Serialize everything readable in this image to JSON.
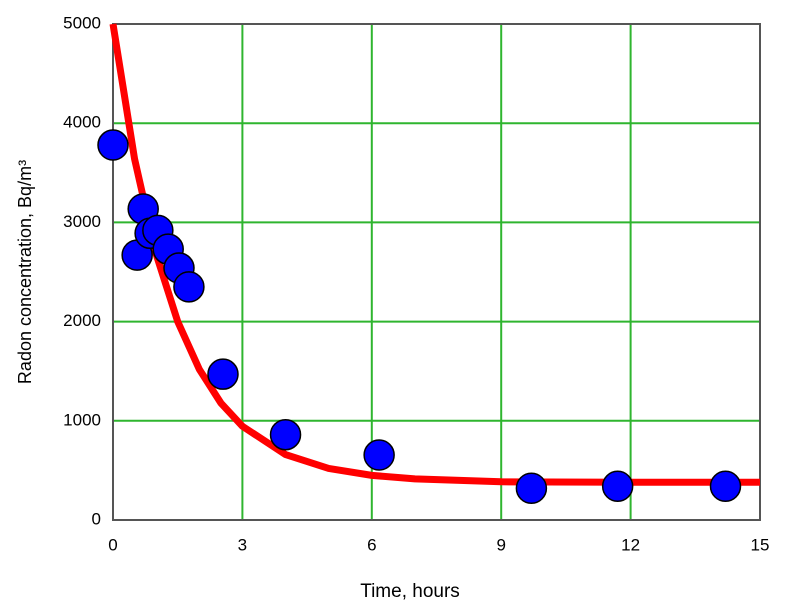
{
  "chart_data": {
    "type": "scatter",
    "x_label": "Time, hours",
    "y_label": "Radon concentration, Bq/m³",
    "xlim": [
      0,
      15
    ],
    "xticks": [
      0,
      3,
      6,
      9,
      12,
      15
    ],
    "ylim": [
      0,
      5000
    ],
    "yticks": [
      0,
      1000,
      2000,
      3000,
      4000,
      5000
    ],
    "grid": true,
    "grid_color": "#2fb52f",
    "series": [
      {
        "type": "line",
        "color": "#ff0000",
        "x": [
          0,
          0.5,
          1,
          1.5,
          2,
          2.5,
          3,
          4,
          5,
          6,
          7,
          9,
          12,
          15
        ],
        "values": [
          5000,
          3640,
          2680,
          2000,
          1520,
          1180,
          945,
          660,
          520,
          450,
          415,
          385,
          380,
          380
        ]
      },
      {
        "type": "scatter",
        "color": "#0000ff",
        "x": [
          0,
          0.56,
          0.7,
          0.86,
          1.04,
          1.28,
          1.53,
          1.76,
          2.55,
          4.0,
          6.17,
          9.7,
          11.7,
          14.2
        ],
        "values": [
          3780,
          2670,
          3135,
          2890,
          2920,
          2730,
          2540,
          2350,
          1470,
          860,
          655,
          320,
          340,
          340
        ]
      }
    ]
  }
}
